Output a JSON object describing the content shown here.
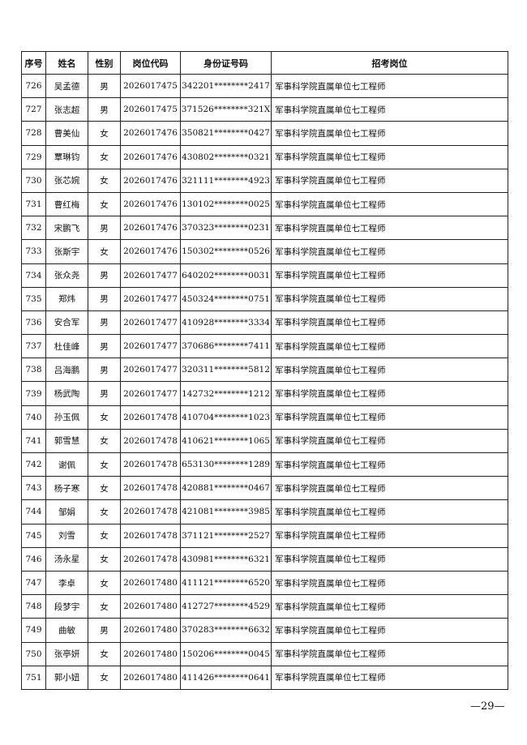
{
  "table": {
    "header": [
      "序号",
      "姓名",
      "性别",
      "岗位代码",
      "身份证号码",
      "招考岗位"
    ],
    "rows": [
      [
        "726",
        "吴孟德",
        "男",
        "2026017475",
        "342201********2417",
        "军事科学院直属单位七工程师"
      ],
      [
        "727",
        "张志超",
        "男",
        "2026017475",
        "371526********321X",
        "军事科学院直属单位七工程师"
      ],
      [
        "728",
        "曹美仙",
        "女",
        "2026017476",
        "350821********0427",
        "军事科学院直属单位七工程师"
      ],
      [
        "729",
        "覃琳钧",
        "女",
        "2026017476",
        "430802********0321",
        "军事科学院直属单位七工程师"
      ],
      [
        "730",
        "张芯婉",
        "女",
        "2026017476",
        "321111********4923",
        "军事科学院直属单位七工程师"
      ],
      [
        "731",
        "曹红梅",
        "女",
        "2026017476",
        "130102********0025",
        "军事科学院直属单位七工程师"
      ],
      [
        "732",
        "宋鹏飞",
        "男",
        "2026017476",
        "370323********0231",
        "军事科学院直属单位七工程师"
      ],
      [
        "733",
        "张斯宇",
        "女",
        "2026017476",
        "150302********0526",
        "军事科学院直属单位七工程师"
      ],
      [
        "734",
        "张众尧",
        "男",
        "2026017477",
        "640202********0031",
        "军事科学院直属单位七工程师"
      ],
      [
        "735",
        "郑炜",
        "男",
        "2026017477",
        "450324********0751",
        "军事科学院直属单位七工程师"
      ],
      [
        "736",
        "安合军",
        "男",
        "2026017477",
        "410928********3334",
        "军事科学院直属单位七工程师"
      ],
      [
        "737",
        "杜佳峰",
        "男",
        "2026017477",
        "370686********7411",
        "军事科学院直属单位七工程师"
      ],
      [
        "738",
        "吕海鹏",
        "男",
        "2026017477",
        "320311********5812",
        "军事科学院直属单位七工程师"
      ],
      [
        "739",
        "杨武陶",
        "男",
        "2026017477",
        "142732********1212",
        "军事科学院直属单位七工程师"
      ],
      [
        "740",
        "孙玉佩",
        "女",
        "2026017478",
        "410704********1023",
        "军事科学院直属单位七工程师"
      ],
      [
        "741",
        "郭雪慧",
        "女",
        "2026017478",
        "410621********1065",
        "军事科学院直属单位七工程师"
      ],
      [
        "742",
        "谢佩",
        "女",
        "2026017478",
        "653130********1289",
        "军事科学院直属单位七工程师"
      ],
      [
        "743",
        "杨子寒",
        "女",
        "2026017478",
        "420881********0467",
        "军事科学院直属单位七工程师"
      ],
      [
        "744",
        "邹娟",
        "女",
        "2026017478",
        "421081********3985",
        "军事科学院直属单位七工程师"
      ],
      [
        "745",
        "刘雪",
        "女",
        "2026017478",
        "371121********2527",
        "军事科学院直属单位七工程师"
      ],
      [
        "746",
        "汤永星",
        "女",
        "2026017478",
        "430981********6321",
        "军事科学院直属单位七工程师"
      ],
      [
        "747",
        "李卓",
        "女",
        "2026017480",
        "411121********6520",
        "军事科学院直属单位七工程师"
      ],
      [
        "748",
        "段梦宇",
        "女",
        "2026017480",
        "412727********4529",
        "军事科学院直属单位七工程师"
      ],
      [
        "749",
        "曲敏",
        "男",
        "2026017480",
        "370283********6632",
        "军事科学院直属单位七工程师"
      ],
      [
        "750",
        "张亭妍",
        "女",
        "2026017480",
        "150206********0045",
        "军事科学院直属单位七工程师"
      ],
      [
        "751",
        "郭小妞",
        "女",
        "2026017480",
        "411426********0641",
        "军事科学院直属单位七工程师"
      ]
    ]
  },
  "footer": {
    "page_number": "—29—"
  }
}
